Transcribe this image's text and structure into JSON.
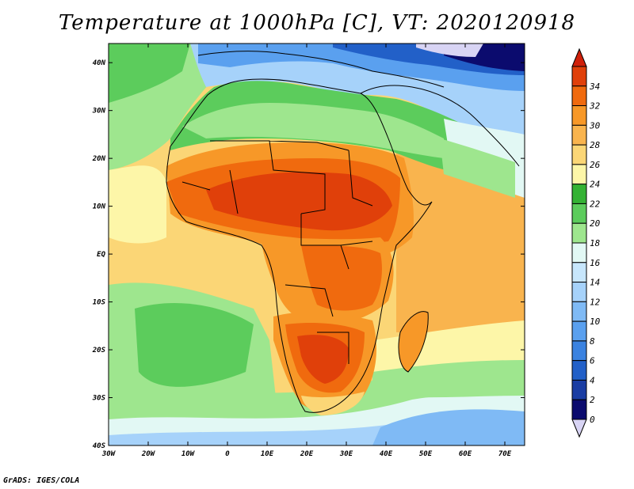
{
  "title": "Temperature at 1000hPa [C], VT: 2020120918",
  "credit": "GrADS: IGES/COLA",
  "map": {
    "lat_labels": [
      {
        "lat": 40,
        "label": "40N"
      },
      {
        "lat": 30,
        "label": "30N"
      },
      {
        "lat": 20,
        "label": "20N"
      },
      {
        "lat": 10,
        "label": "10N"
      },
      {
        "lat": 0,
        "label": "EQ"
      },
      {
        "lat": -10,
        "label": "10S"
      },
      {
        "lat": -20,
        "label": "20S"
      },
      {
        "lat": -30,
        "label": "30S"
      },
      {
        "lat": -40,
        "label": "40S"
      }
    ],
    "lon_labels": [
      {
        "lon": -30,
        "label": "30W"
      },
      {
        "lon": -20,
        "label": "20W"
      },
      {
        "lon": -10,
        "label": "10W"
      },
      {
        "lon": 0,
        "label": "0"
      },
      {
        "lon": 10,
        "label": "10E"
      },
      {
        "lon": 20,
        "label": "20E"
      },
      {
        "lon": 30,
        "label": "30E"
      },
      {
        "lon": 40,
        "label": "40E"
      },
      {
        "lon": 50,
        "label": "50E"
      },
      {
        "lon": 60,
        "label": "60E"
      },
      {
        "lon": 70,
        "label": "70E"
      }
    ],
    "lon_range": [
      -30,
      75
    ],
    "lat_range": [
      -40,
      44
    ]
  },
  "colorbar": {
    "levels": [
      {
        "value": 0,
        "label": "0",
        "color": "#0b0b6e"
      },
      {
        "value": 2,
        "label": "2",
        "color": "#1a3da3"
      },
      {
        "value": 4,
        "label": "4",
        "color": "#2260c8"
      },
      {
        "value": 6,
        "label": "6",
        "color": "#3a82e0"
      },
      {
        "value": 8,
        "label": "8",
        "color": "#5aa0ef"
      },
      {
        "value": 10,
        "label": "10",
        "color": "#7fbaf5"
      },
      {
        "value": 12,
        "label": "12",
        "color": "#a6d2fa"
      },
      {
        "value": 14,
        "label": "14",
        "color": "#c7e6fc"
      },
      {
        "value": 16,
        "label": "16",
        "color": "#e2f8f4"
      },
      {
        "value": 18,
        "label": "18",
        "color": "#9ee68e"
      },
      {
        "value": 20,
        "label": "20",
        "color": "#5ccc5c"
      },
      {
        "value": 22,
        "label": "22",
        "color": "#34b234"
      },
      {
        "value": 24,
        "label": "24",
        "color": "#fdf6a8"
      },
      {
        "value": 26,
        "label": "26",
        "color": "#fbd676"
      },
      {
        "value": 28,
        "label": "28",
        "color": "#f9b44e"
      },
      {
        "value": 30,
        "label": "30",
        "color": "#f79828"
      },
      {
        "value": 32,
        "label": "32",
        "color": "#f06a0e"
      },
      {
        "value": 34,
        "label": "34",
        "color": "#e0400a"
      }
    ],
    "low_color": "#d8d4f4",
    "high_color": "#d0200a"
  }
}
